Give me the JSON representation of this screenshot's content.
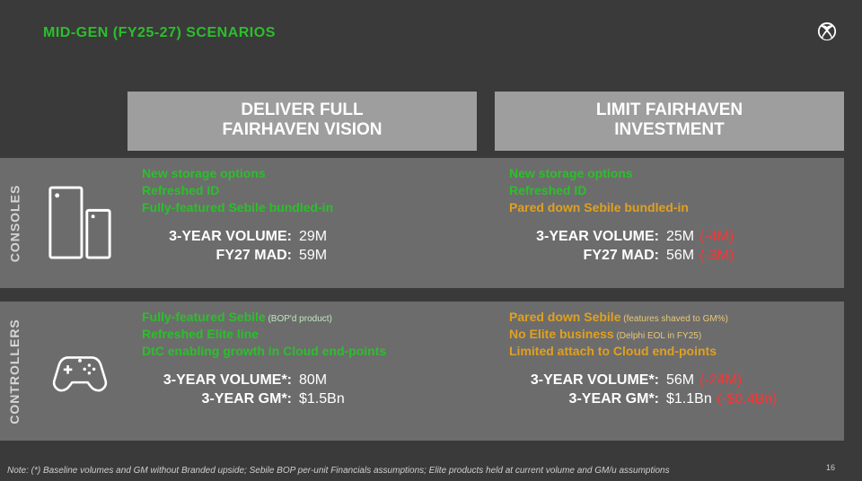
{
  "colors": {
    "green": "#2bbf2b",
    "amber": "#e0a020",
    "red": "#ff3333",
    "white": "#ffffff",
    "subtle": "#bfe8bf"
  },
  "title": "MID-GEN (FY25-27) SCENARIOS",
  "page_number": "16",
  "footnote": "Note: (*) Baseline volumes and GM without Branded upside; Sebile BOP per-unit Financials assumptions; Elite products held at current volume and GM/u assumptions",
  "columns": {
    "left": {
      "line1": "DELIVER FULL",
      "line2": "FAIRHAVEN VISION"
    },
    "right": {
      "line1": "LIMIT FAIRHAVEN",
      "line2": "INVESTMENT"
    }
  },
  "sections": {
    "consoles": {
      "label": "CONSOLES",
      "left": {
        "features": [
          {
            "text": "New storage options",
            "color": "green"
          },
          {
            "text": "Refreshed ID",
            "color": "green"
          },
          {
            "text": "Fully-featured Sebile bundled-in",
            "color": "green"
          }
        ],
        "metrics": [
          {
            "label": "3-YEAR VOLUME:",
            "value": "29M"
          },
          {
            "label": "FY27 MAD:",
            "value": "59M"
          }
        ]
      },
      "right": {
        "features": [
          {
            "text": "New storage options",
            "color": "green"
          },
          {
            "text": "Refreshed ID",
            "color": "green"
          },
          {
            "text": "Pared down Sebile bundled-in",
            "color": "amber"
          }
        ],
        "metrics": [
          {
            "label": "3-YEAR VOLUME:",
            "value": "25M",
            "delta": "(-4M)"
          },
          {
            "label": "FY27 MAD:",
            "value": "56M",
            "delta": "(-3M)"
          }
        ]
      }
    },
    "controllers": {
      "label": "CONTROLLERS",
      "left": {
        "features": [
          {
            "text": "Fully-featured Sebile",
            "sub": "(BOP'd product)",
            "color": "green"
          },
          {
            "text": "Refreshed Elite line",
            "color": "green"
          },
          {
            "text": "DtC enabling growth in Cloud end-points",
            "color": "green"
          }
        ],
        "metrics": [
          {
            "label": "3-YEAR VOLUME*:",
            "value": "80M"
          },
          {
            "label": "3-YEAR GM*:",
            "value": "$1.5Bn"
          }
        ]
      },
      "right": {
        "features": [
          {
            "text": "Pared down Sebile",
            "sub": "(features shaved to GM%)",
            "color": "amber"
          },
          {
            "text": "No Elite business",
            "sub": "(Delphi EOL in FY25)",
            "color": "amber"
          },
          {
            "text": "Limited attach to Cloud end-points",
            "color": "amber"
          }
        ],
        "metrics": [
          {
            "label": "3-YEAR VOLUME*:",
            "value": "56M",
            "delta": "(-24M)"
          },
          {
            "label": "3-YEAR GM*:",
            "value": "$1.1Bn",
            "delta": "(-$0.4Bn)"
          }
        ]
      }
    }
  }
}
